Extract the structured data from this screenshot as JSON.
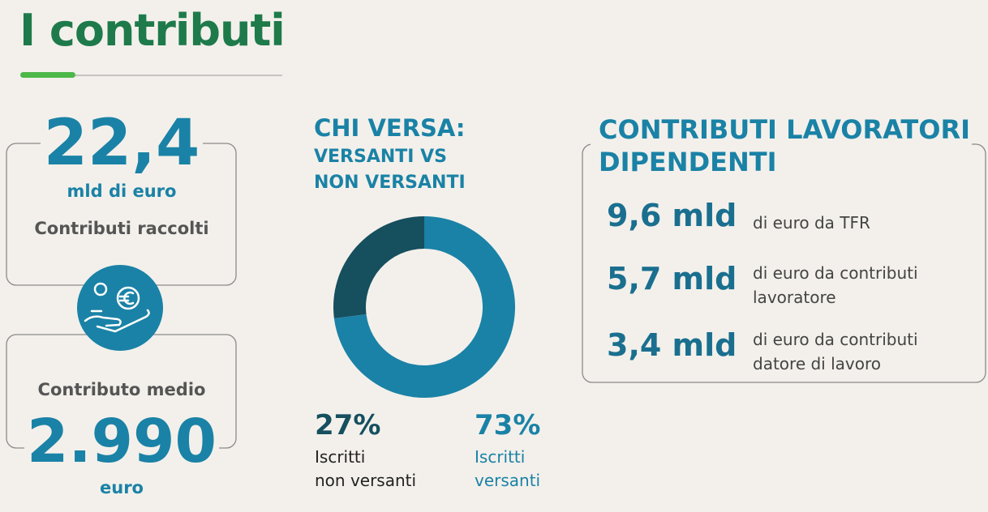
{
  "header": {
    "title": "I contributi"
  },
  "raccolti": {
    "value": "22,4",
    "unit": "mld di euro",
    "label": "Contributi raccolti"
  },
  "medio": {
    "label": "Contributo medio",
    "value": "2.990",
    "unit": "euro"
  },
  "chart_data": {
    "type": "donut",
    "title": "CHI VERSA:",
    "subtitle": "VERSANTI VS\nNON VERSANTI",
    "categories": [
      "Iscritti\nnon versanti",
      "Iscritti\nversanti"
    ],
    "values": [
      27,
      73
    ],
    "value_labels": [
      "27%",
      "73%"
    ],
    "colors": [
      "#164f5e",
      "#1a82a6"
    ]
  },
  "dipendenti": {
    "title": "CONTRIBUTI LAVORATORI\nDIPENDENTI",
    "items": [
      {
        "amount": "9,6 mld",
        "text": "di euro da TFR"
      },
      {
        "amount": "5,7 mld",
        "text": "di euro da contributi\nlavoratore"
      },
      {
        "amount": "3,4 mld",
        "text": "di euro da contributi\ndatore di lavoro"
      }
    ]
  }
}
